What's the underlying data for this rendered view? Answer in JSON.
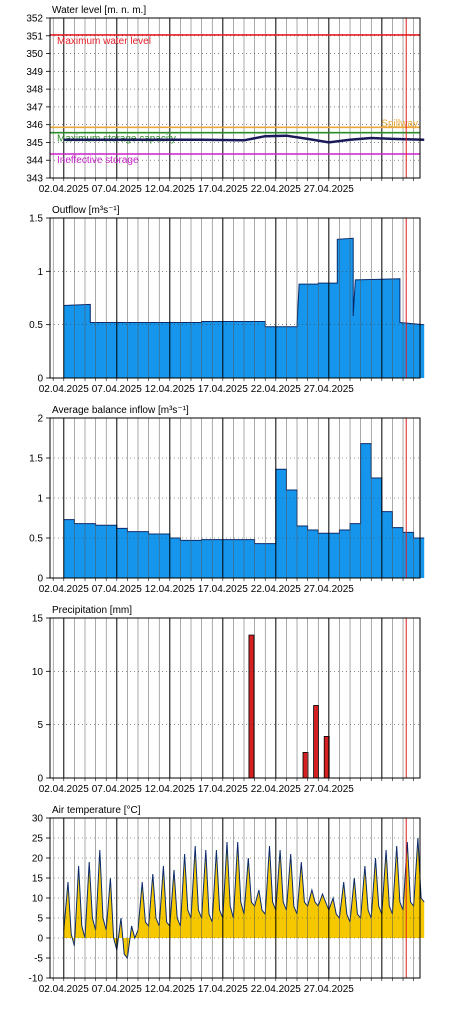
{
  "chart_data": [
    {
      "type": "line",
      "title": "Water level [m. n. m.]",
      "ylim": [
        343,
        352
      ],
      "yticks": [
        343,
        344,
        345,
        346,
        347,
        348,
        349,
        350,
        351,
        352
      ],
      "x_dates": [
        "02.04.2025",
        "07.04.2025",
        "12.04.2025",
        "17.04.2025",
        "22.04.2025",
        "27.04.2025"
      ],
      "reference_lines": [
        {
          "label": "Maximum water level",
          "value": 351.05,
          "color": "#e8202a"
        },
        {
          "label": "Spillway",
          "value": 345.85,
          "color": "#e8a93a"
        },
        {
          "label": "Maximum storage capacity",
          "value": 345.55,
          "color": "#2a8c2a"
        },
        {
          "label": "Ineffective storage",
          "value": 344.35,
          "color": "#cc22cc"
        }
      ],
      "series": [
        {
          "color": "#1a1a5a",
          "points": [
            [
              0,
              345.15
            ],
            [
              3,
              345.15
            ],
            [
              8,
              345.15
            ],
            [
              13,
              345.15
            ],
            [
              17,
              345.12
            ],
            [
              19,
              345.35
            ],
            [
              21,
              345.38
            ],
            [
              23,
              345.2
            ],
            [
              25,
              345.0
            ],
            [
              27,
              345.15
            ],
            [
              29,
              345.25
            ],
            [
              31,
              345.2
            ],
            [
              34,
              345.15
            ]
          ]
        }
      ]
    },
    {
      "type": "area",
      "title": "Outflow [m³s⁻¹]",
      "ylim": [
        0,
        1.5
      ],
      "yticks": [
        0,
        0.5,
        1,
        1.5
      ],
      "x_dates": [
        "02.04.2025",
        "07.04.2025",
        "12.04.2025",
        "17.04.2025",
        "22.04.2025",
        "27.04.2025"
      ],
      "series": [
        {
          "color": "#1596ec",
          "points": [
            [
              0,
              0.68
            ],
            [
              2.5,
              0.69
            ],
            [
              2.5,
              0.52
            ],
            [
              6,
              0.52
            ],
            [
              12,
              0.52
            ],
            [
              13,
              0.52
            ],
            [
              13,
              0.53
            ],
            [
              17.5,
              0.53
            ],
            [
              19,
              0.53
            ],
            [
              19,
              0.48
            ],
            [
              22,
              0.48
            ],
            [
              22,
              0.49
            ],
            [
              22.2,
              0.88
            ],
            [
              24,
              0.88
            ],
            [
              24,
              0.89
            ],
            [
              25.8,
              0.89
            ],
            [
              25.8,
              1.3
            ],
            [
              27.3,
              1.31
            ],
            [
              27.3,
              0.58
            ],
            [
              27.5,
              0.92
            ],
            [
              31.7,
              0.93
            ],
            [
              31.7,
              0.52
            ],
            [
              34,
              0.5
            ]
          ]
        }
      ]
    },
    {
      "type": "area",
      "title": "Average balance inflow  [m³s⁻¹]",
      "ylim": [
        0,
        2
      ],
      "yticks": [
        0,
        0.5,
        1,
        1.5,
        2
      ],
      "x_dates": [
        "02.04.2025",
        "07.04.2025",
        "12.04.2025",
        "17.04.2025",
        "22.04.2025",
        "27.04.2025"
      ],
      "series": [
        {
          "color": "#1596ec",
          "points": [
            [
              0,
              0.73
            ],
            [
              1,
              0.73
            ],
            [
              1,
              0.68
            ],
            [
              3,
              0.68
            ],
            [
              3,
              0.66
            ],
            [
              5,
              0.66
            ],
            [
              5,
              0.62
            ],
            [
              6,
              0.62
            ],
            [
              6,
              0.58
            ],
            [
              8,
              0.58
            ],
            [
              8,
              0.55
            ],
            [
              10,
              0.55
            ],
            [
              10,
              0.5
            ],
            [
              11,
              0.5
            ],
            [
              11,
              0.47
            ],
            [
              13,
              0.47
            ],
            [
              13,
              0.48
            ],
            [
              18,
              0.48
            ],
            [
              18,
              0.43
            ],
            [
              20,
              0.43
            ],
            [
              20,
              1.36
            ],
            [
              21,
              1.36
            ],
            [
              21,
              1.1
            ],
            [
              22,
              1.1
            ],
            [
              22,
              0.65
            ],
            [
              23,
              0.65
            ],
            [
              23,
              0.6
            ],
            [
              24,
              0.6
            ],
            [
              24,
              0.56
            ],
            [
              26,
              0.56
            ],
            [
              26,
              0.6
            ],
            [
              27,
              0.6
            ],
            [
              27,
              0.68
            ],
            [
              28,
              0.68
            ],
            [
              28,
              1.68
            ],
            [
              29,
              1.68
            ],
            [
              29,
              1.25
            ],
            [
              30,
              1.25
            ],
            [
              30,
              0.83
            ],
            [
              31,
              0.83
            ],
            [
              31,
              0.63
            ],
            [
              32,
              0.63
            ],
            [
              32,
              0.57
            ],
            [
              33,
              0.57
            ],
            [
              33,
              0.5
            ],
            [
              34,
              0.5
            ]
          ]
        }
      ]
    },
    {
      "type": "bar",
      "title": "Precipitation [mm]",
      "ylim": [
        0,
        15
      ],
      "yticks": [
        0,
        5,
        10,
        15
      ],
      "x_dates": [
        "02.04.2025",
        "07.04.2025",
        "12.04.2025",
        "17.04.2025",
        "22.04.2025",
        "27.04.2025"
      ],
      "color": "#d42020",
      "bars": [
        {
          "x": 17.7,
          "value": 13.4
        },
        {
          "x": 22.8,
          "value": 2.4
        },
        {
          "x": 23.8,
          "value": 6.8
        },
        {
          "x": 24.8,
          "value": 3.9
        }
      ]
    },
    {
      "type": "area",
      "title": "Air temperature [°C]",
      "ylim": [
        -10,
        30
      ],
      "yticks": [
        -10,
        -5,
        0,
        5,
        10,
        15,
        20,
        25,
        30
      ],
      "x_dates": [
        "02.04.2025",
        "07.04.2025",
        "12.04.2025",
        "17.04.2025",
        "22.04.2025",
        "27.04.2025"
      ],
      "series": [
        {
          "color": "#f5c800",
          "points": [
            [
              0,
              2
            ],
            [
              0.4,
              14
            ],
            [
              0.7,
              1
            ],
            [
              1,
              -2
            ],
            [
              1.4,
              18
            ],
            [
              1.7,
              3
            ],
            [
              2,
              0
            ],
            [
              2.4,
              19
            ],
            [
              2.7,
              5
            ],
            [
              3,
              2
            ],
            [
              3.4,
              22
            ],
            [
              3.7,
              5
            ],
            [
              4,
              2
            ],
            [
              4.4,
              15
            ],
            [
              4.7,
              0
            ],
            [
              5,
              -3
            ],
            [
              5.4,
              5
            ],
            [
              5.7,
              -4
            ],
            [
              6,
              -5
            ],
            [
              6.4,
              3
            ],
            [
              6.7,
              0
            ],
            [
              7,
              2
            ],
            [
              7.4,
              14
            ],
            [
              7.7,
              4
            ],
            [
              8,
              3
            ],
            [
              8.4,
              16
            ],
            [
              8.7,
              5
            ],
            [
              9,
              3
            ],
            [
              9.4,
              18
            ],
            [
              9.7,
              4
            ],
            [
              10,
              3
            ],
            [
              10.4,
              17
            ],
            [
              10.7,
              5
            ],
            [
              11,
              3
            ],
            [
              11.4,
              21
            ],
            [
              11.7,
              7
            ],
            [
              12,
              5
            ],
            [
              12.4,
              23
            ],
            [
              12.7,
              7
            ],
            [
              13,
              5
            ],
            [
              13.4,
              22
            ],
            [
              13.7,
              6
            ],
            [
              14,
              4
            ],
            [
              14.4,
              22
            ],
            [
              14.7,
              7
            ],
            [
              15,
              5
            ],
            [
              15.4,
              24
            ],
            [
              15.7,
              8
            ],
            [
              16,
              5
            ],
            [
              16.4,
              24
            ],
            [
              16.7,
              9
            ],
            [
              17,
              6
            ],
            [
              17.4,
              20
            ],
            [
              17.7,
              9
            ],
            [
              18,
              8
            ],
            [
              18.4,
              12
            ],
            [
              18.7,
              7
            ],
            [
              19,
              6
            ],
            [
              19.4,
              23
            ],
            [
              19.7,
              9
            ],
            [
              20,
              7
            ],
            [
              20.4,
              22
            ],
            [
              20.7,
              9
            ],
            [
              21,
              7
            ],
            [
              21.4,
              21
            ],
            [
              21.7,
              8
            ],
            [
              22,
              6
            ],
            [
              22.4,
              19
            ],
            [
              22.7,
              9
            ],
            [
              23,
              8
            ],
            [
              23.4,
              12
            ],
            [
              23.7,
              9
            ],
            [
              24,
              8
            ],
            [
              24.4,
              11
            ],
            [
              24.7,
              9
            ],
            [
              25,
              7
            ],
            [
              25.4,
              10
            ],
            [
              25.7,
              6
            ],
            [
              26,
              5
            ],
            [
              26.4,
              14
            ],
            [
              26.7,
              6
            ],
            [
              27,
              4
            ],
            [
              27.4,
              15
            ],
            [
              27.7,
              6
            ],
            [
              28,
              5
            ],
            [
              28.4,
              18
            ],
            [
              28.7,
              7
            ],
            [
              29,
              5
            ],
            [
              29.4,
              20
            ],
            [
              29.7,
              8
            ],
            [
              30,
              6
            ],
            [
              30.4,
              22
            ],
            [
              30.7,
              8
            ],
            [
              31,
              6
            ],
            [
              31.4,
              23
            ],
            [
              31.7,
              9
            ],
            [
              32,
              7
            ],
            [
              32.4,
              24
            ],
            [
              32.7,
              9
            ],
            [
              33,
              8
            ],
            [
              33.4,
              25
            ],
            [
              33.7,
              10
            ],
            [
              34,
              9
            ]
          ]
        }
      ]
    }
  ]
}
